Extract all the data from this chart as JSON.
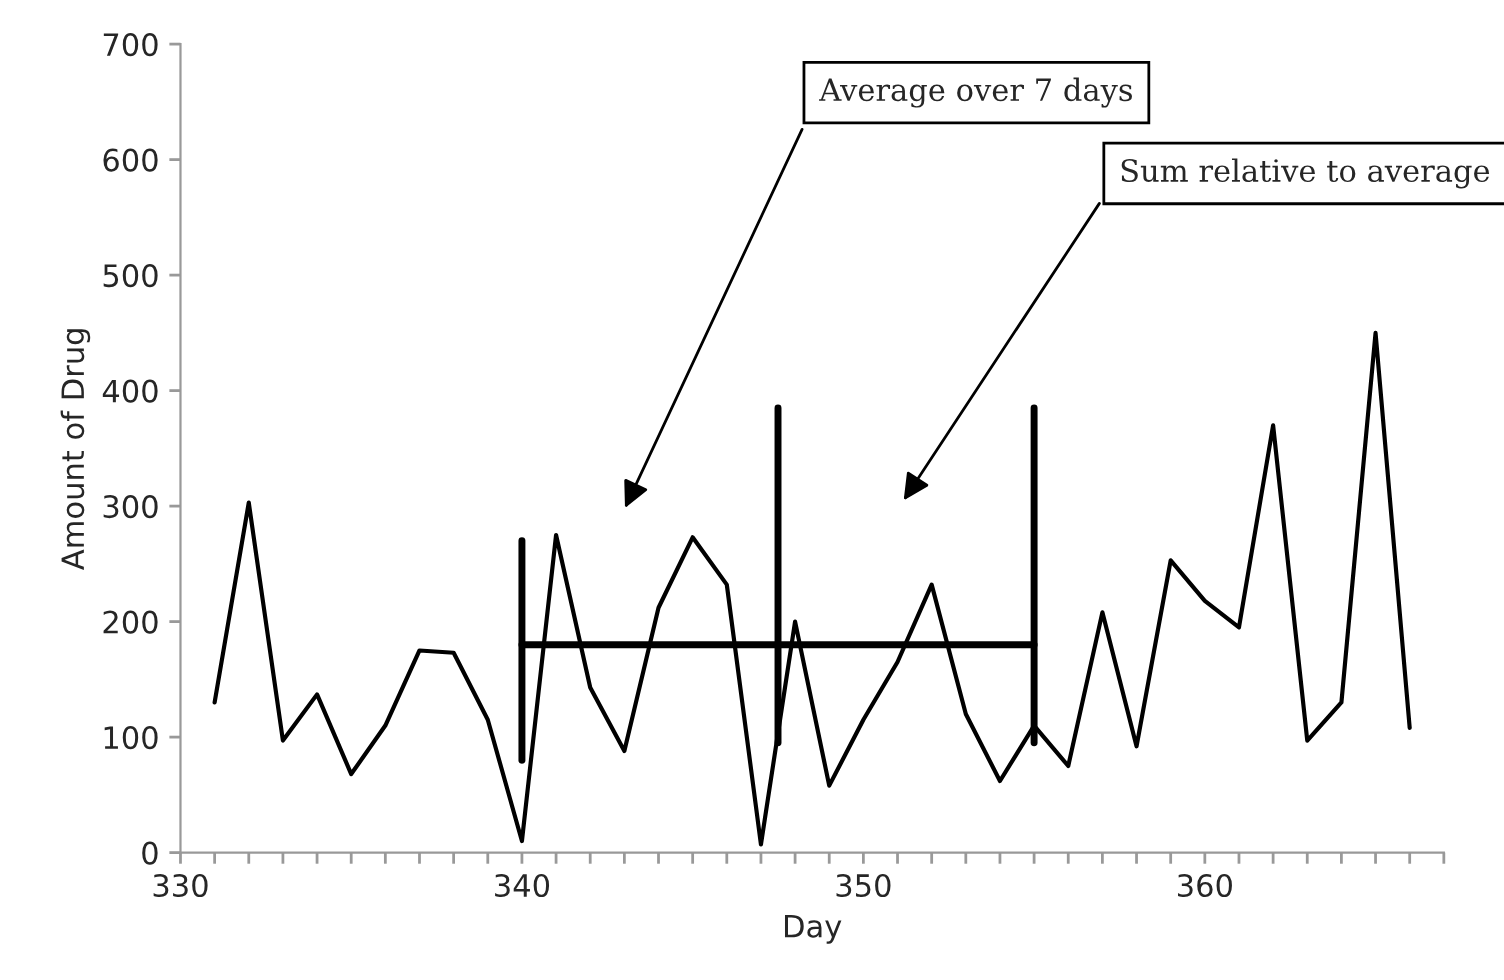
{
  "chart_data": {
    "type": "line",
    "xlabel": "Day",
    "ylabel": "Amount of Drug",
    "x": [
      331,
      332,
      333,
      334,
      335,
      336,
      337,
      338,
      339,
      340,
      341,
      342,
      343,
      344,
      345,
      346,
      347,
      348,
      349,
      350,
      351,
      352,
      353,
      354,
      355,
      356,
      357,
      358,
      359,
      360,
      361,
      362,
      363,
      364,
      365,
      366
    ],
    "series": [
      {
        "color": "#000000",
        "values": [
          130,
          303,
          97,
          137,
          68,
          110,
          175,
          173,
          115,
          10,
          275,
          143,
          88,
          212,
          273,
          232,
          7,
          200,
          58,
          115,
          165,
          232,
          120,
          62,
          110,
          75,
          208,
          92,
          253,
          218,
          195,
          370,
          97,
          130,
          450,
          108
        ]
      },
      {
        "type": "line",
        "color": "#000000",
        "x": [
          340,
          355
        ],
        "values": [
          180,
          180
        ]
      },
      {
        "type": "line",
        "color": "#000000",
        "x": [
          340,
          340
        ],
        "values": [
          80,
          270
        ]
      },
      {
        "type": "line",
        "color": "#000000",
        "x": [
          347.5,
          347.5
        ],
        "values": [
          95,
          385
        ]
      },
      {
        "type": "line",
        "color": "#000000",
        "x": [
          355,
          355
        ],
        "values": [
          95,
          385
        ]
      }
    ],
    "annotations": [
      "Average over 7 days",
      "Sum relative to average"
    ],
    "xlim": [
      330,
      367
    ],
    "xticks": [
      330,
      {
        "value": 331,
        "label": null
      },
      {
        "value": 332,
        "label": null
      },
      {
        "value": 333,
        "label": null
      },
      {
        "value": 334,
        "label": null
      },
      {
        "value": 335,
        "label": null
      },
      {
        "value": 336,
        "label": null
      },
      {
        "value": 337,
        "label": null
      },
      {
        "value": 338,
        "label": null
      },
      {
        "value": 339,
        "label": null
      },
      340,
      {
        "value": 341,
        "label": null
      },
      {
        "value": 342,
        "label": null
      },
      {
        "value": 343,
        "label": null
      },
      {
        "value": 344,
        "label": null
      },
      {
        "value": 345,
        "label": null
      },
      {
        "value": 346,
        "label": null
      },
      {
        "value": 347,
        "label": null
      },
      {
        "value": 348,
        "label": null
      },
      {
        "value": 349,
        "label": null
      },
      350,
      {
        "value": 351,
        "label": null
      },
      {
        "value": 352,
        "label": null
      },
      {
        "value": 353,
        "label": null
      },
      {
        "value": 354,
        "label": null
      },
      {
        "value": 355,
        "label": null
      },
      {
        "value": 356,
        "label": null
      },
      {
        "value": 357,
        "label": null
      },
      {
        "value": 358,
        "label": null
      },
      {
        "value": 359,
        "label": null
      },
      360,
      {
        "value": 361,
        "label": null
      },
      {
        "value": 362,
        "label": null
      },
      {
        "value": 363,
        "label": null
      },
      {
        "value": 364,
        "label": null
      },
      {
        "value": 365,
        "label": null
      },
      {
        "value": 366,
        "label": null
      },
      {
        "value": 367,
        "label": null
      }
    ],
    "ylim": [
      0,
      700
    ],
    "yticks": [
      0,
      100,
      200,
      300,
      400,
      500,
      600,
      700
    ],
    "grid": false,
    "legend": false,
    "marker": "none",
    "line_style": "solid"
  }
}
